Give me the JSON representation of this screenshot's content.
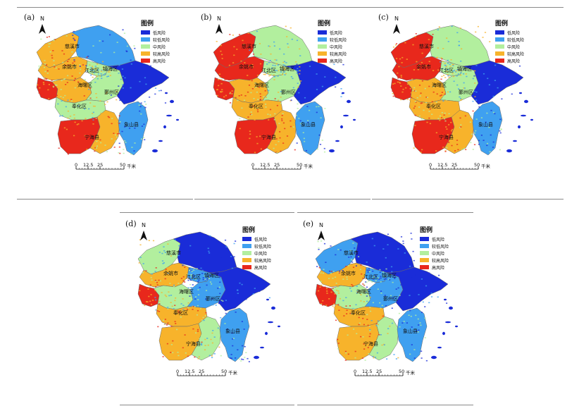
{
  "colors": {
    "low": "#1a2cd8",
    "lower": "#3fa0f0",
    "medium": "#b2ef9e",
    "higher": "#f7b32b",
    "high": "#e8281c",
    "boundary": "#6b6b6b"
  },
  "legend": {
    "title": "图例",
    "items": [
      {
        "label": "低风险",
        "color_key": "low"
      },
      {
        "label": "较低风险",
        "color_key": "lower"
      },
      {
        "label": "中风险",
        "color_key": "medium"
      },
      {
        "label": "较高风险",
        "color_key": "higher"
      },
      {
        "label": "高风险",
        "color_key": "high"
      }
    ]
  },
  "north_label": "N",
  "scale_bar": {
    "ticks": [
      "0",
      "12.5",
      "25",
      "50"
    ],
    "unit": "千米"
  },
  "panels": [
    {
      "id": "a",
      "label": "(a)",
      "regions": {
        "cixi": "慈溪市",
        "yuyao": "余姚市",
        "jiangbei": "江北区",
        "zhenhai": "镇海区",
        "haishu": "海曙区",
        "yinzhou": "鄞州区",
        "fenghua": "奉化区",
        "ninghai": "宁海县",
        "xiangshan": "象山县"
      },
      "zone_risk": {
        "cixi_w": "higher",
        "cixi_e": "lower",
        "yuyao_n": "higher",
        "yuyao_s": "high",
        "haishu": "higher",
        "jiangbei": "medium",
        "yinzhou_w": "medium",
        "east": "low",
        "fenghua": "medium",
        "ninghai_w": "high",
        "ninghai_e": "higher",
        "xiangshan": "lower"
      }
    },
    {
      "id": "b",
      "label": "(b)",
      "regions": {
        "cixi": "慈溪市",
        "yuyao": "余姚市",
        "jiangbei": "江北区",
        "zhenhai": "镇海区",
        "haishu": "海曙区",
        "yinzhou": "鄞州区",
        "fenghua": "奉化区",
        "ninghai": "宁海县",
        "xiangshan": "象山县"
      },
      "zone_risk": {
        "cixi_w": "high",
        "cixi_e": "medium",
        "yuyao_n": "high",
        "yuyao_s": "high",
        "haishu": "higher",
        "jiangbei": "medium",
        "yinzhou_w": "medium",
        "east": "low",
        "fenghua": "higher",
        "ninghai_w": "high",
        "ninghai_e": "higher",
        "xiangshan": "lower"
      }
    },
    {
      "id": "c",
      "label": "(c)",
      "regions": {
        "cixi": "慈溪市",
        "yuyao": "余姚市",
        "jiangbei": "江北区",
        "zhenhai": "镇海区",
        "haishu": "海曙区",
        "yinzhou": "鄞州区",
        "fenghua": "奉化区",
        "ninghai": "宁海县",
        "xiangshan": "象山县"
      },
      "zone_risk": {
        "cixi_w": "high",
        "cixi_e": "medium",
        "yuyao_n": "high",
        "yuyao_s": "high",
        "haishu": "higher",
        "jiangbei": "medium",
        "yinzhou_w": "medium",
        "east": "low",
        "fenghua": "higher",
        "ninghai_w": "high",
        "ninghai_e": "higher",
        "xiangshan": "lower"
      }
    },
    {
      "id": "d",
      "label": "(d)",
      "regions": {
        "cixi": "慈溪市",
        "yuyao": "余姚市",
        "jiangbei": "江北区",
        "zhenhai": "镇海区",
        "haishu": "海曙区",
        "yinzhou": "鄞州区",
        "fenghua": "奉化区",
        "ninghai": "宁海县",
        "xiangshan": "象山县"
      },
      "zone_risk": {
        "cixi_w": "medium",
        "cixi_e": "low",
        "yuyao_n": "higher",
        "yuyao_s": "high",
        "haishu": "medium",
        "jiangbei": "lower",
        "yinzhou_w": "lower",
        "east": "low",
        "fenghua": "higher",
        "ninghai_w": "higher",
        "ninghai_e": "medium",
        "xiangshan": "lower"
      }
    },
    {
      "id": "e",
      "label": "(e)",
      "regions": {
        "cixi": "慈溪市",
        "yuyao": "余姚市",
        "jiangbei": "江北区",
        "zhenhai": "镇海区",
        "haishu": "海曙区",
        "yinzhou": "鄞州区",
        "fenghua": "奉化区",
        "ninghai": "宁海县",
        "xiangshan": "象山县"
      },
      "zone_risk": {
        "cixi_w": "lower",
        "cixi_e": "low",
        "yuyao_n": "higher",
        "yuyao_s": "high",
        "haishu": "medium",
        "jiangbei": "lower",
        "yinzhou_w": "lower",
        "east": "low",
        "fenghua": "higher",
        "ninghai_w": "higher",
        "ninghai_e": "medium",
        "xiangshan": "lower"
      }
    }
  ]
}
